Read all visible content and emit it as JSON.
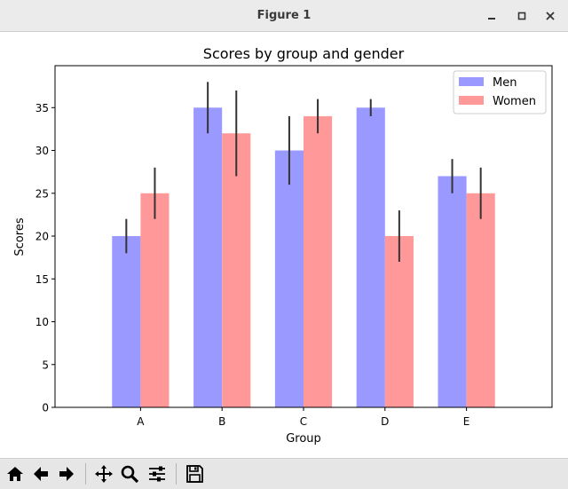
{
  "window": {
    "title": "Figure 1",
    "minimize_icon": "minimize-icon",
    "maximize_icon": "maximize-icon",
    "close_icon": "close-icon"
  },
  "toolbar": {
    "buttons": [
      "home-icon",
      "back-arrow-icon",
      "forward-arrow-icon",
      "pan-move-icon",
      "zoom-magnifier-icon",
      "configure-subplots-icon",
      "save-floppy-icon"
    ]
  },
  "chart_data": {
    "type": "bar",
    "title": "Scores by group and gender",
    "xlabel": "Group",
    "ylabel": "Scores",
    "categories": [
      "A",
      "B",
      "C",
      "D",
      "E"
    ],
    "series": [
      {
        "name": "Men",
        "values": [
          20,
          35,
          30,
          35,
          27
        ],
        "errors": [
          2,
          3,
          4,
          1,
          2
        ],
        "color": "#9999ff"
      },
      {
        "name": "Women",
        "values": [
          25,
          32,
          34,
          20,
          25
        ],
        "errors": [
          3,
          5,
          2,
          3,
          3
        ],
        "color": "#ff9999"
      }
    ],
    "ylim": [
      0,
      39.9
    ],
    "yticks": [
      0,
      5,
      10,
      15,
      20,
      25,
      30,
      35
    ],
    "grid": false,
    "legend": "top-right",
    "errorbar_color": "#333333"
  }
}
